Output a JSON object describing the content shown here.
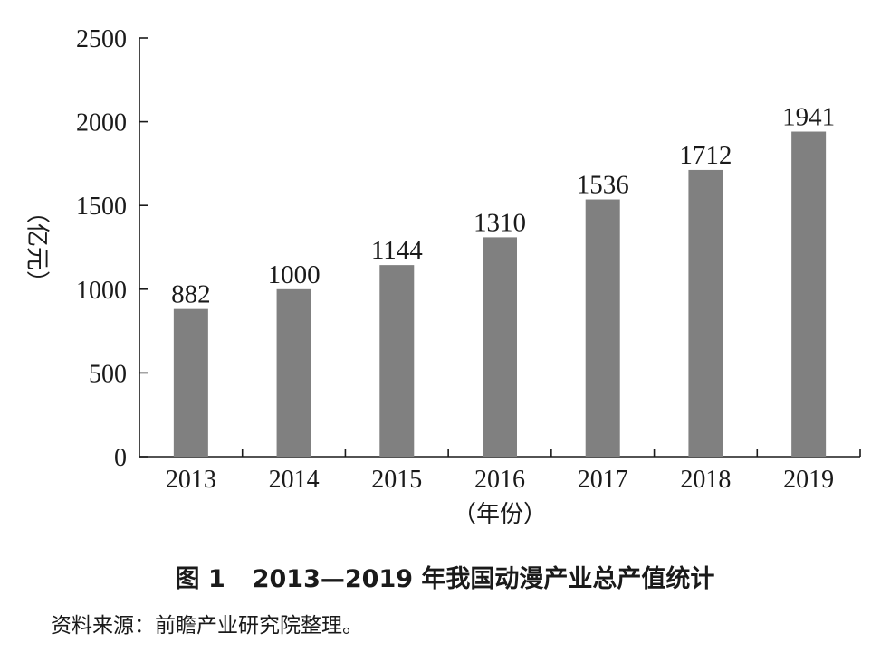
{
  "chart_data": {
    "type": "bar",
    "categories": [
      "2013",
      "2014",
      "2015",
      "2016",
      "2017",
      "2018",
      "2019"
    ],
    "values": [
      882,
      1000,
      1144,
      1310,
      1536,
      1712,
      1941
    ],
    "data_labels": [
      "882",
      "1000",
      "1144",
      "1310",
      "1536",
      "1712",
      "1941"
    ],
    "xlabel": "（年份）",
    "ylabel": "（亿元）",
    "ylim": [
      0,
      2500
    ],
    "yticks": [
      0,
      500,
      1000,
      1500,
      2000,
      2500
    ],
    "ytick_labels": [
      "0",
      "500",
      "1000",
      "1500",
      "2000",
      "2500"
    ],
    "grid": false,
    "legend": "none",
    "bar_color": "#808080"
  },
  "caption": {
    "figure_number": "图 1",
    "title": "2013—2019 年我国动漫产业总产值统计"
  },
  "source_note": "资料来源：前瞻产业研究院整理。"
}
